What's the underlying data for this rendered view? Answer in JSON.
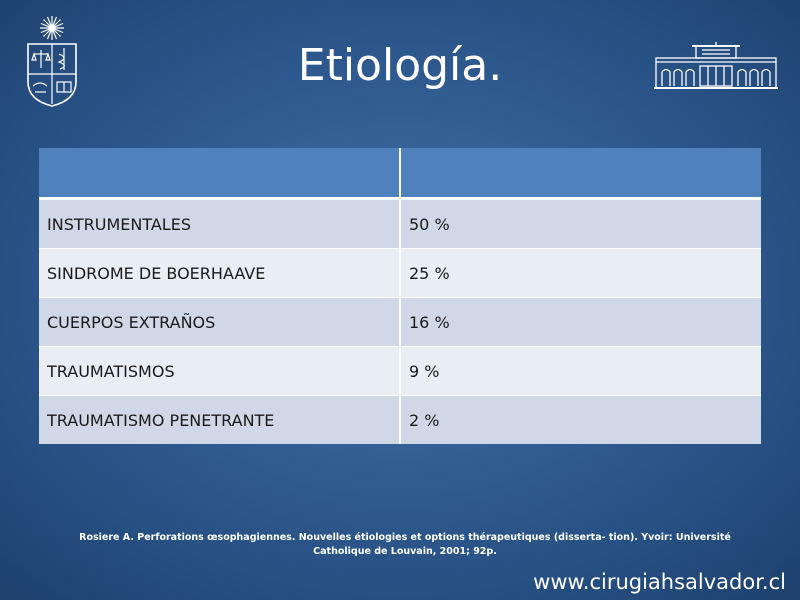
{
  "slide": {
    "title": "Etiología.",
    "table": {
      "header": [
        "",
        ""
      ],
      "rows": [
        {
          "cause": "INSTRUMENTALES",
          "percent": "50 %"
        },
        {
          "cause": "SINDROME DE BOERHAAVE",
          "percent": "25 %"
        },
        {
          "cause": "CUERPOS EXTRAÑOS",
          "percent": "16 %"
        },
        {
          "cause": "TRAUMATISMOS",
          "percent": "9 %"
        },
        {
          "cause": "TRAUMATISMO PENETRANTE",
          "percent": "2 %"
        }
      ]
    },
    "citation": "Rosiere A. Perforations œsophagiennes. Nouvelles étiologies et options thérapeutiques (disserta- tion). Yvoir: Université Catholique de Louvain, 2001; 92p.",
    "website": "www.cirugiahsalvador.cl"
  },
  "colors": {
    "background": "#335f95",
    "table_header": "#4f81bd",
    "row_odd": "#d0d8e8",
    "row_even": "#e9edf4"
  },
  "icons": {
    "left_logo": "university-crest-icon",
    "right_logo": "hospital-building-icon"
  }
}
